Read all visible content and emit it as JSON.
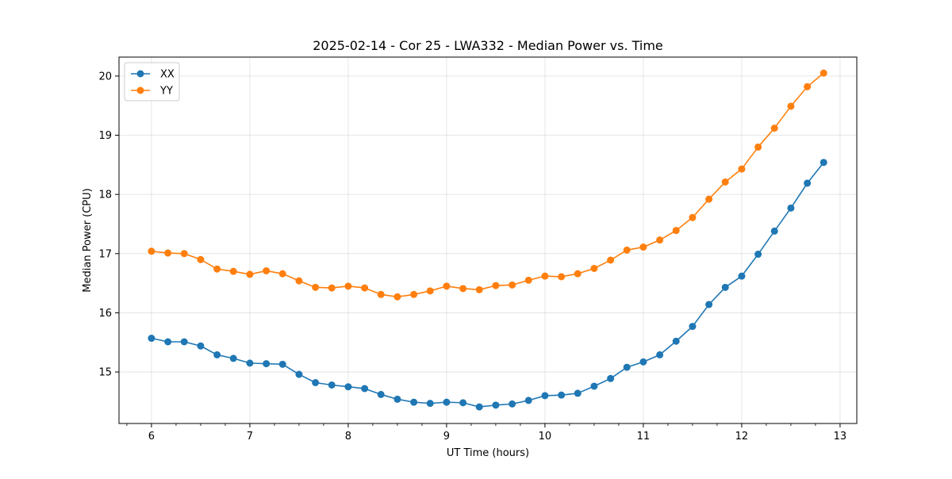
{
  "chart_data": {
    "type": "line",
    "title": "2025-02-14 - Cor 25 - LWA332 - Median Power vs. Time",
    "xlabel": "UT Time (hours)",
    "ylabel": "Median Power (CPU)",
    "xlim": [
      5.67,
      13.17
    ],
    "ylim": [
      14.13,
      20.32
    ],
    "xticks": [
      6,
      7,
      8,
      9,
      10,
      11,
      12,
      13
    ],
    "xticks_minor": [
      5.75,
      6.25,
      6.5,
      6.75,
      7.25,
      7.5,
      7.75,
      8.25,
      8.5,
      8.75,
      9.25,
      9.5,
      9.75,
      10.25,
      10.5,
      10.75,
      11.25,
      11.5,
      11.75,
      12.25,
      12.5,
      12.75,
      13.25
    ],
    "yticks": [
      15,
      16,
      17,
      18,
      19,
      20
    ],
    "grid": true,
    "legend": "upper-left",
    "x": [
      6.0,
      6.167,
      6.333,
      6.5,
      6.667,
      6.833,
      7.0,
      7.167,
      7.333,
      7.5,
      7.667,
      7.833,
      8.0,
      8.167,
      8.333,
      8.5,
      8.667,
      8.833,
      9.0,
      9.167,
      9.333,
      9.5,
      9.667,
      9.833,
      10.0,
      10.167,
      10.333,
      10.5,
      10.667,
      10.833,
      11.0,
      11.167,
      11.333,
      11.5,
      11.667,
      11.833,
      12.0,
      12.167,
      12.333,
      12.5,
      12.667,
      12.833
    ],
    "series": [
      {
        "name": "XX",
        "color": "#1f77b4",
        "values": [
          15.57,
          15.51,
          15.51,
          15.44,
          15.29,
          15.23,
          15.15,
          15.14,
          15.13,
          14.96,
          14.82,
          14.78,
          14.75,
          14.72,
          14.62,
          14.54,
          14.49,
          14.47,
          14.49,
          14.48,
          14.41,
          14.44,
          14.46,
          14.52,
          14.6,
          14.61,
          14.64,
          14.76,
          14.89,
          15.08,
          15.17,
          15.29,
          15.52,
          15.77,
          16.14,
          16.43,
          16.62,
          16.99,
          17.38,
          17.77,
          18.19,
          18.54
        ]
      },
      {
        "name": "YY",
        "color": "#ff7f0e",
        "values": [
          17.04,
          17.01,
          17.0,
          16.9,
          16.74,
          16.7,
          16.65,
          16.71,
          16.66,
          16.54,
          16.43,
          16.42,
          16.45,
          16.42,
          16.31,
          16.27,
          16.31,
          16.37,
          16.45,
          16.41,
          16.39,
          16.46,
          16.47,
          16.55,
          16.62,
          16.61,
          16.66,
          16.75,
          16.89,
          17.06,
          17.11,
          17.23,
          17.39,
          17.61,
          17.92,
          18.21,
          18.43,
          18.8,
          19.12,
          19.49,
          19.82,
          20.05
        ]
      }
    ]
  }
}
